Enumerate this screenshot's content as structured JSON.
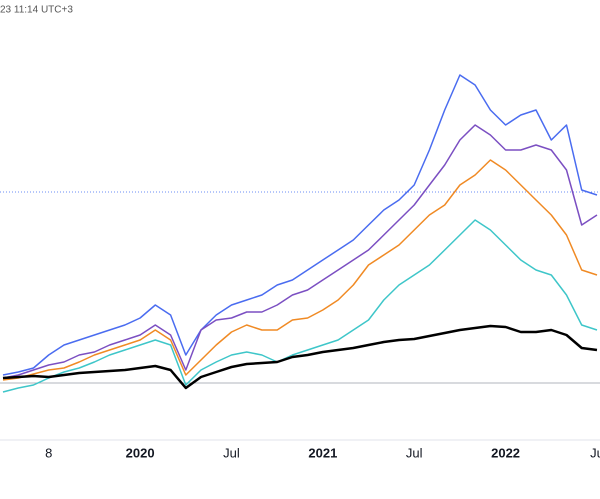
{
  "header": {
    "timestamp": "23 11:14 UTC+3"
  },
  "chart_data": {
    "type": "line",
    "x": [
      -9,
      -8,
      -7,
      -6,
      -5,
      -4,
      -3,
      -2,
      -1,
      0,
      1,
      2,
      3,
      4,
      5,
      6,
      7,
      8,
      9,
      10,
      11,
      12,
      13,
      14,
      15,
      16,
      17,
      18,
      19,
      20,
      21,
      22,
      23,
      24,
      25,
      26,
      27,
      28,
      29,
      30
    ],
    "xlim": [
      -9.2,
      30.2
    ],
    "xticks": [
      {
        "value": -6,
        "label": "8"
      },
      {
        "value": 0,
        "label": "2020"
      },
      {
        "value": 6,
        "label": "Jul"
      },
      {
        "value": 12,
        "label": "2021"
      },
      {
        "value": 18,
        "label": "Jul"
      },
      {
        "value": 24,
        "label": "2022"
      },
      {
        "value": 30,
        "label": "Ju"
      }
    ],
    "ylim": [
      -57,
      383
    ],
    "series": [
      {
        "color": "#000000",
        "values": [
          5,
          6,
          7,
          6,
          8,
          10,
          11,
          12,
          13,
          15,
          17,
          13,
          -5,
          6,
          11,
          16,
          19,
          20,
          21,
          26,
          28,
          31,
          33,
          35,
          38,
          41,
          43,
          44,
          47,
          50,
          53,
          55,
          57,
          56,
          51,
          51,
          53,
          48,
          35,
          33
        ]
      },
      {
        "color": "#3ec6c9",
        "values": [
          -9,
          -5,
          -2,
          5,
          11,
          15,
          21,
          28,
          33,
          38,
          43,
          38,
          -2,
          13,
          21,
          28,
          31,
          28,
          21,
          28,
          33,
          38,
          43,
          53,
          63,
          83,
          98,
          108,
          118,
          133,
          148,
          163,
          153,
          138,
          123,
          113,
          108,
          88,
          58,
          53
        ]
      },
      {
        "color": "#f08a24",
        "values": [
          3,
          5,
          9,
          13,
          15,
          21,
          28,
          33,
          38,
          43,
          53,
          43,
          8,
          23,
          38,
          51,
          58,
          53,
          53,
          63,
          65,
          73,
          83,
          98,
          118,
          128,
          138,
          153,
          168,
          178,
          198,
          208,
          223,
          213,
          198,
          183,
          168,
          148,
          113,
          108
        ]
      },
      {
        "color": "#7b4fc2",
        "values": [
          5,
          8,
          13,
          18,
          21,
          28,
          31,
          38,
          43,
          48,
          58,
          48,
          13,
          53,
          63,
          65,
          71,
          71,
          78,
          88,
          93,
          103,
          113,
          123,
          133,
          148,
          163,
          178,
          198,
          218,
          243,
          258,
          248,
          233,
          233,
          238,
          233,
          213,
          158,
          168
        ]
      },
      {
        "color": "#4a6cf0",
        "values": [
          8,
          11,
          15,
          28,
          38,
          43,
          48,
          53,
          58,
          65,
          78,
          68,
          28,
          53,
          68,
          78,
          83,
          88,
          98,
          103,
          113,
          123,
          133,
          143,
          158,
          173,
          183,
          198,
          233,
          273,
          308,
          298,
          273,
          258,
          268,
          273,
          243,
          258,
          193,
          188
        ]
      }
    ]
  }
}
